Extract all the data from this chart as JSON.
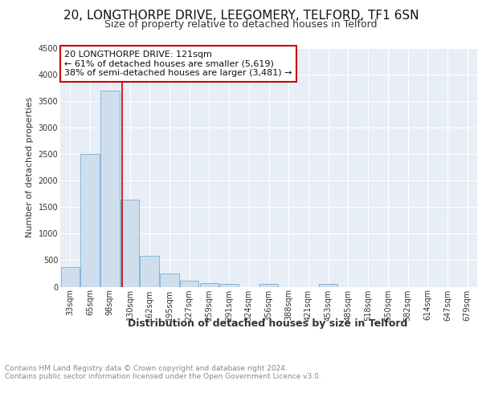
{
  "title": "20, LONGTHORPE DRIVE, LEEGOMERY, TELFORD, TF1 6SN",
  "subtitle": "Size of property relative to detached houses in Telford",
  "xlabel": "Distribution of detached houses by size in Telford",
  "ylabel": "Number of detached properties",
  "categories": [
    "33sqm",
    "65sqm",
    "98sqm",
    "130sqm",
    "162sqm",
    "195sqm",
    "227sqm",
    "259sqm",
    "291sqm",
    "324sqm",
    "356sqm",
    "388sqm",
    "421sqm",
    "453sqm",
    "485sqm",
    "518sqm",
    "550sqm",
    "582sqm",
    "614sqm",
    "647sqm",
    "679sqm"
  ],
  "values": [
    375,
    2500,
    3700,
    1640,
    580,
    245,
    110,
    65,
    50,
    0,
    50,
    0,
    0,
    55,
    0,
    0,
    0,
    0,
    0,
    0,
    0
  ],
  "bar_color": "#cfdeed",
  "bar_edge_color": "#7aafd4",
  "annotation_text": "20 LONGTHORPE DRIVE: 121sqm\n← 61% of detached houses are smaller (5,619)\n38% of semi-detached houses are larger (3,481) →",
  "annotation_box_color": "#ffffff",
  "annotation_box_edge": "#cc0000",
  "ylim": [
    0,
    4500
  ],
  "yticks": [
    0,
    500,
    1000,
    1500,
    2000,
    2500,
    3000,
    3500,
    4000,
    4500
  ],
  "bg_color": "#e8eef5",
  "grid_color": "#ffffff",
  "footer": "Contains HM Land Registry data © Crown copyright and database right 2024.\nContains public sector information licensed under the Open Government Licence v3.0.",
  "title_fontsize": 11,
  "subtitle_fontsize": 9,
  "xlabel_fontsize": 9,
  "ylabel_fontsize": 8,
  "tick_fontsize": 7,
  "annotation_fontsize": 8,
  "footer_fontsize": 6.5
}
